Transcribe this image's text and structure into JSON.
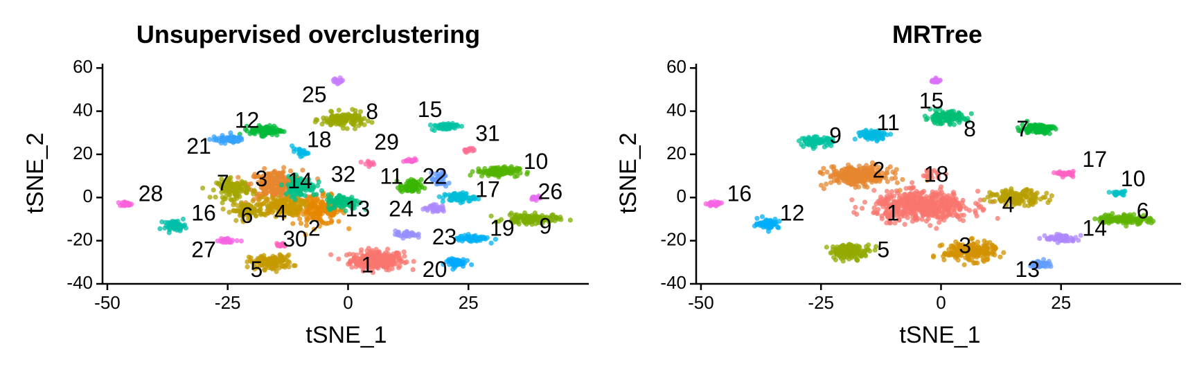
{
  "chart_data": [
    {
      "type": "scatter",
      "title": "Unsupervised overclustering",
      "xlabel": "tSNE_1",
      "ylabel": "tSNE_2",
      "xlim": [
        -51,
        50
      ],
      "ylim": [
        -40,
        62
      ],
      "xticks": [
        -50,
        -25,
        0,
        25
      ],
      "yticks": [
        -40,
        -20,
        0,
        20,
        40,
        60
      ],
      "xtick_labels": [
        "-50",
        "-25",
        "0",
        "25"
      ],
      "ytick_labels": [
        "-40",
        "-20",
        "0",
        "20",
        "40",
        "60"
      ],
      "grid": false,
      "legend": "none",
      "clusters": [
        {
          "label": "1",
          "x": 6,
          "y": -29,
          "sx": 5,
          "sy": 4,
          "n": 260,
          "color": "#F8766D",
          "lx": 4,
          "ly": -32
        },
        {
          "label": "2",
          "x": -6,
          "y": -6,
          "sx": 5,
          "sy": 6,
          "n": 180,
          "color": "#E58700",
          "lx": -7,
          "ly": -15
        },
        {
          "label": "3",
          "x": -15,
          "y": 6,
          "sx": 5,
          "sy": 6,
          "n": 260,
          "color": "#E6862E",
          "lx": -18,
          "ly": 8
        },
        {
          "label": "4",
          "x": -14,
          "y": -4,
          "sx": 4,
          "sy": 4,
          "n": 150,
          "color": "#C99800",
          "lx": -14,
          "ly": -8
        },
        {
          "label": "5",
          "x": -16,
          "y": -30,
          "sx": 4,
          "sy": 3,
          "n": 120,
          "color": "#C49A00",
          "lx": -19,
          "ly": -34
        },
        {
          "label": "6",
          "x": -21,
          "y": -6,
          "sx": 3,
          "sy": 3,
          "n": 90,
          "color": "#B79F00",
          "lx": -21,
          "ly": -9
        },
        {
          "label": "7",
          "x": -24,
          "y": 4,
          "sx": 3,
          "sy": 4,
          "n": 110,
          "color": "#A3A500",
          "lx": -26,
          "ly": 6
        },
        {
          "label": "8",
          "x": -1,
          "y": 36,
          "sx": 4,
          "sy": 3,
          "n": 130,
          "color": "#9AA800",
          "lx": 5,
          "ly": 39
        },
        {
          "label": "9",
          "x": 38,
          "y": -10,
          "sx": 5,
          "sy": 2,
          "n": 130,
          "color": "#7CAE00",
          "lx": 41,
          "ly": -14
        },
        {
          "label": "10",
          "x": 31,
          "y": 12,
          "sx": 4,
          "sy": 2,
          "n": 110,
          "color": "#53B400",
          "lx": 39,
          "ly": 16
        },
        {
          "label": "11",
          "x": 13,
          "y": 5,
          "sx": 2,
          "sy": 3,
          "n": 70,
          "color": "#39B600",
          "lx": 9,
          "ly": 9
        },
        {
          "label": "12",
          "x": -17,
          "y": 31,
          "sx": 3,
          "sy": 2,
          "n": 90,
          "color": "#00BA38",
          "lx": -21,
          "ly": 35
        },
        {
          "label": "13",
          "x": -1,
          "y": -2,
          "sx": 3,
          "sy": 3,
          "n": 110,
          "color": "#00BF7D",
          "lx": 2,
          "ly": -6
        },
        {
          "label": "14",
          "x": -10,
          "y": 5,
          "sx": 3,
          "sy": 4,
          "n": 100,
          "color": "#00C08B",
          "lx": -10,
          "ly": 7
        },
        {
          "label": "15",
          "x": 20,
          "y": 33,
          "sx": 2.5,
          "sy": 1.5,
          "n": 60,
          "color": "#00C1A3",
          "lx": 17,
          "ly": 40
        },
        {
          "label": "16",
          "x": -36,
          "y": -13,
          "sx": 2,
          "sy": 2,
          "n": 60,
          "color": "#00BFAA",
          "lx": -30,
          "ly": -8
        },
        {
          "label": "17",
          "x": 23,
          "y": 0,
          "sx": 3,
          "sy": 2,
          "n": 70,
          "color": "#00BCD8",
          "lx": 29,
          "ly": 3
        },
        {
          "label": "18",
          "x": -10,
          "y": 21,
          "sx": 1.5,
          "sy": 1.5,
          "n": 25,
          "color": "#00B8E7",
          "lx": -6,
          "ly": 26
        },
        {
          "label": "19",
          "x": 26,
          "y": -19,
          "sx": 3,
          "sy": 1.5,
          "n": 60,
          "color": "#00B0F6",
          "lx": 32,
          "ly": -15
        },
        {
          "label": "20",
          "x": 22,
          "y": -30,
          "sx": 2,
          "sy": 2,
          "n": 50,
          "color": "#00A9FF",
          "lx": 18,
          "ly": -34
        },
        {
          "label": "21",
          "x": -25,
          "y": 27,
          "sx": 3,
          "sy": 1.5,
          "n": 60,
          "color": "#35A2FF",
          "lx": -31,
          "ly": 23
        },
        {
          "label": "22",
          "x": 19,
          "y": 8,
          "sx": 1.5,
          "sy": 3,
          "n": 40,
          "color": "#619CFF",
          "lx": 18,
          "ly": 9
        },
        {
          "label": "23",
          "x": 12,
          "y": -17,
          "sx": 2,
          "sy": 1.5,
          "n": 40,
          "color": "#9590FF",
          "lx": 20,
          "ly": -19
        },
        {
          "label": "24",
          "x": 18,
          "y": -5,
          "sx": 2,
          "sy": 1.5,
          "n": 40,
          "color": "#AC88FF",
          "lx": 11,
          "ly": -6
        },
        {
          "label": "25",
          "x": -2,
          "y": 54,
          "sx": 1,
          "sy": 1.2,
          "n": 25,
          "color": "#C77CFF",
          "lx": -7,
          "ly": 47
        },
        {
          "label": "26",
          "x": 39,
          "y": 0,
          "sx": 1,
          "sy": 0.8,
          "n": 15,
          "color": "#E76BF3",
          "lx": 42,
          "ly": 2
        },
        {
          "label": "27",
          "x": -25,
          "y": -20,
          "sx": 2,
          "sy": 1,
          "n": 25,
          "color": "#F564E3",
          "lx": -30,
          "ly": -25
        },
        {
          "label": "28",
          "x": -46,
          "y": -3,
          "sx": 1.5,
          "sy": 0.8,
          "n": 25,
          "color": "#FA62DB",
          "lx": -41,
          "ly": 1
        },
        {
          "label": "29",
          "x": 13,
          "y": 17,
          "sx": 1.5,
          "sy": 1,
          "n": 15,
          "color": "#FD61D1",
          "lx": 8,
          "ly": 25
        },
        {
          "label": "30",
          "x": -14,
          "y": -22,
          "sx": 1,
          "sy": 1,
          "n": 12,
          "color": "#FF62BC",
          "lx": -11,
          "ly": -20
        },
        {
          "label": "31",
          "x": 25,
          "y": 22,
          "sx": 1,
          "sy": 1,
          "n": 12,
          "color": "#FF6C91",
          "lx": 29,
          "ly": 29
        },
        {
          "label": "32",
          "x": 4,
          "y": 16,
          "sx": 1,
          "sy": 1,
          "n": 12,
          "color": "#FF67A4",
          "lx": -1,
          "ly": 10
        }
      ]
    },
    {
      "type": "scatter",
      "title": "MRTree",
      "xlabel": "tSNE_1",
      "ylabel": "tSNE_2",
      "xlim": [
        -51,
        50
      ],
      "ylim": [
        -40,
        62
      ],
      "xticks": [
        -50,
        -25,
        0,
        25
      ],
      "yticks": [
        -40,
        -20,
        0,
        20,
        40,
        60
      ],
      "xtick_labels": [
        "-50",
        "-25",
        "0",
        "25"
      ],
      "ytick_labels": [
        "-40",
        "-20",
        "0",
        "20",
        "40",
        "60"
      ],
      "grid": false,
      "legend": "none",
      "clusters": [
        {
          "label": "1",
          "x": -4,
          "y": -4,
          "sx": 9,
          "sy": 6,
          "n": 520,
          "color": "#F8766D",
          "lx": -10,
          "ly": -8
        },
        {
          "label": "2",
          "x": -17,
          "y": 10,
          "sx": 6,
          "sy": 4,
          "n": 260,
          "color": "#E6862E",
          "lx": -13,
          "ly": 12
        },
        {
          "label": "3",
          "x": 6,
          "y": -25,
          "sx": 5,
          "sy": 4,
          "n": 200,
          "color": "#D39200",
          "lx": 5,
          "ly": -23
        },
        {
          "label": "4",
          "x": 16,
          "y": 0,
          "sx": 5,
          "sy": 3,
          "n": 140,
          "color": "#B79F00",
          "lx": 14,
          "ly": -4
        },
        {
          "label": "5",
          "x": -19,
          "y": -25,
          "sx": 4,
          "sy": 3,
          "n": 130,
          "color": "#93AA00",
          "lx": -12,
          "ly": -25
        },
        {
          "label": "6",
          "x": 38,
          "y": -10,
          "sx": 5,
          "sy": 2,
          "n": 130,
          "color": "#5EB300",
          "lx": 42,
          "ly": -7
        },
        {
          "label": "7",
          "x": 20,
          "y": 32,
          "sx": 3,
          "sy": 2,
          "n": 100,
          "color": "#00BA38",
          "lx": 17,
          "ly": 31
        },
        {
          "label": "8",
          "x": 1,
          "y": 37,
          "sx": 4,
          "sy": 2.5,
          "n": 130,
          "color": "#00BF74",
          "lx": 6,
          "ly": 31
        },
        {
          "label": "9",
          "x": -26,
          "y": 26,
          "sx": 3,
          "sy": 1.8,
          "n": 90,
          "color": "#00C19F",
          "lx": -22,
          "ly": 28
        },
        {
          "label": "10",
          "x": 37,
          "y": 2,
          "sx": 1.5,
          "sy": 1,
          "n": 20,
          "color": "#00BFC4",
          "lx": 40,
          "ly": 8
        },
        {
          "label": "11",
          "x": -14,
          "y": 29,
          "sx": 3,
          "sy": 2,
          "n": 90,
          "color": "#00B9E3",
          "lx": -11,
          "ly": 34
        },
        {
          "label": "12",
          "x": -36,
          "y": -12,
          "sx": 2,
          "sy": 2,
          "n": 60,
          "color": "#00ADFA",
          "lx": -31,
          "ly": -8
        },
        {
          "label": "13",
          "x": 21,
          "y": -31,
          "sx": 2,
          "sy": 1.5,
          "n": 50,
          "color": "#619CFF",
          "lx": 18,
          "ly": -34
        },
        {
          "label": "14",
          "x": 25,
          "y": -19,
          "sx": 3,
          "sy": 1.5,
          "n": 60,
          "color": "#AE87FF",
          "lx": 32,
          "ly": -15
        },
        {
          "label": "15",
          "x": -1,
          "y": 54,
          "sx": 1,
          "sy": 1.2,
          "n": 25,
          "color": "#DB72FB",
          "lx": -2,
          "ly": 44
        },
        {
          "label": "16",
          "x": -47,
          "y": -3,
          "sx": 1.5,
          "sy": 0.8,
          "n": 25,
          "color": "#F564E3",
          "lx": -42,
          "ly": 1
        },
        {
          "label": "17",
          "x": 26,
          "y": 11,
          "sx": 1.5,
          "sy": 1,
          "n": 30,
          "color": "#FF61C3",
          "lx": 32,
          "ly": 17
        },
        {
          "label": "18",
          "x": -2,
          "y": 11,
          "sx": 2,
          "sy": 2,
          "n": 20,
          "color": "#F8766D",
          "lx": -1,
          "ly": 10
        }
      ]
    }
  ]
}
